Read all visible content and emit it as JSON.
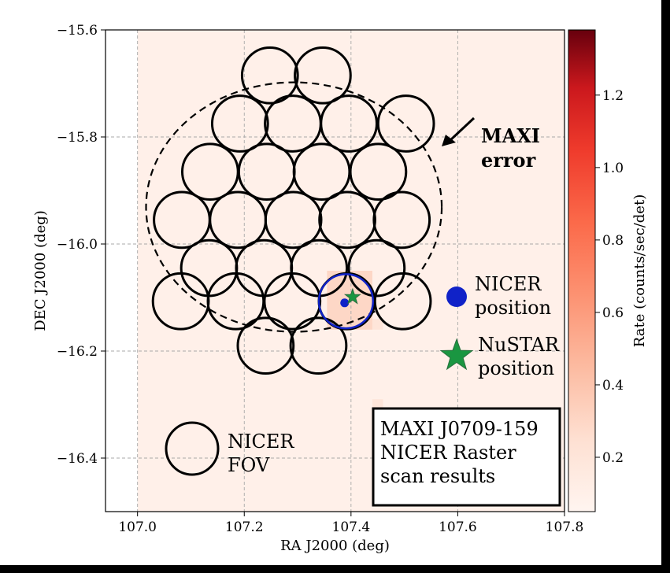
{
  "chart_data": {
    "type": "scatter",
    "xlabel": "RA J2000 (deg)",
    "ylabel": "DEC J2000 (deg)",
    "xlim": [
      106.94,
      107.8
    ],
    "ylim": [
      -16.5,
      -15.6
    ],
    "xticks": [
      "107.0",
      "107.2",
      "107.4",
      "107.6",
      "107.8"
    ],
    "yticks": [
      "−15.6",
      "−15.8",
      "−16.0",
      "−16.2",
      "−16.4"
    ],
    "grid": true,
    "colorbar": {
      "label": "Rate (counts/sec/det)",
      "ticks": [
        "0.2",
        "0.4",
        "0.6",
        "0.8",
        "1.0",
        "1.2"
      ],
      "range": [
        0.05,
        1.38
      ],
      "colormap": "Reds"
    },
    "fov_radius_deg": 0.052,
    "fov_circles": [
      {
        "ra": 107.248,
        "dec": -15.685
      },
      {
        "ra": 107.347,
        "dec": -15.685
      },
      {
        "ra": 107.192,
        "dec": -15.775
      },
      {
        "ra": 107.291,
        "dec": -15.775
      },
      {
        "ra": 107.396,
        "dec": -15.775
      },
      {
        "ra": 107.503,
        "dec": -15.775
      },
      {
        "ra": 107.136,
        "dec": -15.865
      },
      {
        "ra": 107.242,
        "dec": -15.865
      },
      {
        "ra": 107.345,
        "dec": -15.865
      },
      {
        "ra": 107.451,
        "dec": -15.865
      },
      {
        "ra": 107.083,
        "dec": -15.955
      },
      {
        "ra": 107.188,
        "dec": -15.955
      },
      {
        "ra": 107.292,
        "dec": -15.955
      },
      {
        "ra": 107.393,
        "dec": -15.955
      },
      {
        "ra": 107.495,
        "dec": -15.955
      },
      {
        "ra": 107.134,
        "dec": -16.045
      },
      {
        "ra": 107.237,
        "dec": -16.045
      },
      {
        "ra": 107.34,
        "dec": -16.045
      },
      {
        "ra": 107.448,
        "dec": -16.045
      },
      {
        "ra": 107.081,
        "dec": -16.107
      },
      {
        "ra": 107.184,
        "dec": -16.107
      },
      {
        "ra": 107.29,
        "dec": -16.107
      },
      {
        "ra": 107.392,
        "dec": -16.107
      },
      {
        "ra": 107.497,
        "dec": -16.107
      },
      {
        "ra": 107.24,
        "dec": -16.19
      },
      {
        "ra": 107.339,
        "dec": -16.19
      }
    ],
    "maxi_error_circle": {
      "ra": 107.293,
      "dec": -15.931,
      "r_ra": 0.277,
      "r_dec": 0.233
    },
    "nicer_position": {
      "ra": 107.388,
      "dec": -16.11
    },
    "nustar_position": {
      "ra": 107.403,
      "dec": -16.099
    },
    "heat_pixels": [
      {
        "ra0": 107.365,
        "ra1": 107.425,
        "dec0": -16.145,
        "dec1": -16.07,
        "rate": 0.5
      },
      {
        "ra0": 107.375,
        "ra1": 107.41,
        "dec0": -16.13,
        "dec1": -16.09,
        "rate": 0.7
      },
      {
        "ra0": 107.355,
        "ra1": 107.44,
        "dec0": -16.16,
        "dec1": -16.05,
        "rate": 0.3
      },
      {
        "ra0": 107.44,
        "ra1": 107.46,
        "dec0": -16.16,
        "dec1": -16.14,
        "rate": 0.2
      },
      {
        "ra0": 107.44,
        "ra1": 107.46,
        "dec0": -16.32,
        "dec1": -16.29,
        "rate": 0.2
      }
    ],
    "annotations": {
      "maxi_error": "MAXI\nerror",
      "nicer_position": "NICER\nposition",
      "nustar_position": "NuSTAR\nposition",
      "nicer_fov": "NICER\nFOV",
      "info_box": "MAXI J0709-159\nNICER Raster\nscan results"
    },
    "colors": {
      "background": "#fff0e9",
      "nicer_marker": "#1022c8",
      "nustar_marker": "#1a9641",
      "circle_stroke": "#000000"
    }
  }
}
